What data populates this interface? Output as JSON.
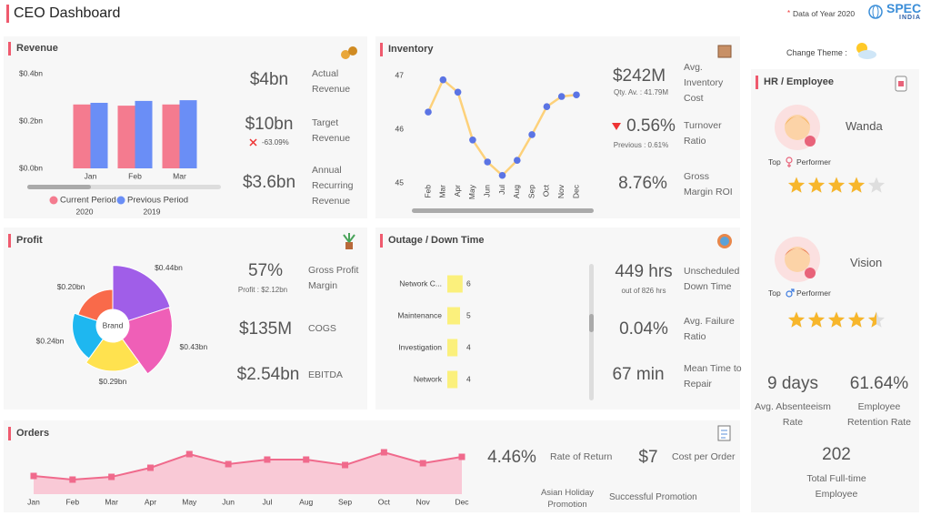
{
  "header": {
    "title": "CEO Dashboard",
    "note_mark": "*",
    "note": "Data of Year 2020",
    "logo": [
      "SPEC",
      "INDIA"
    ]
  },
  "theme_label": "Change Theme :",
  "revenue": {
    "title": "Revenue",
    "chart": {
      "type": "bar",
      "categories": [
        "Jan",
        "Feb",
        "Mar"
      ],
      "series": [
        {
          "name": "Current Period",
          "year": "2020",
          "color": "#f47b8f",
          "values": [
            0.27,
            0.265,
            0.27
          ]
        },
        {
          "name": "Previous Period",
          "year": "2019",
          "color": "#6a8ef6",
          "values": [
            0.277,
            0.285,
            0.288
          ]
        }
      ],
      "ylim": [
        0,
        0.4
      ],
      "yticks": [
        {
          "value": 0,
          "label": "$0.0bn"
        },
        {
          "value": 0.2,
          "label": "$0.2bn"
        },
        {
          "value": 0.4,
          "label": "$0.4bn"
        }
      ]
    },
    "kpis": [
      {
        "value": "$4bn",
        "label": "Actual Revenue"
      },
      {
        "value": "$10bn",
        "label": "Target Revenue",
        "change": "-63.09%"
      },
      {
        "value": "$3.6bn",
        "label": "Annual Recurring Revenue"
      }
    ]
  },
  "inventory": {
    "title": "Inventory",
    "chart": {
      "type": "line",
      "categories": [
        "Feb",
        "Mar",
        "Apr",
        "May",
        "Jun",
        "Jul",
        "Aug",
        "Sep",
        "Oct",
        "Nov",
        "Dec"
      ],
      "values": [
        46.32,
        46.92,
        46.69,
        45.8,
        45.39,
        45.14,
        45.42,
        45.9,
        46.42,
        46.61,
        46.64
      ],
      "color": "#fdd17a",
      "marker_color": "#5b74e4",
      "ylim": [
        45,
        47
      ],
      "yticks": [
        45,
        46,
        47
      ]
    },
    "kpis": [
      {
        "value": "$242M",
        "sub": "Qty. Av. : 41.79M",
        "label": "Avg. Inventory Cost"
      },
      {
        "value": "0.56%",
        "sub": "Previous : 0.61%",
        "label": "Turnover Ratio"
      },
      {
        "value": "8.76%",
        "label": "Gross Margin ROI"
      }
    ]
  },
  "profit": {
    "title": "Profit",
    "chart": {
      "type": "rose",
      "center_label": "Brand",
      "values": [
        0.44,
        0.43,
        0.29,
        0.24,
        0.2
      ],
      "value_labels": [
        "$0.44bn",
        "$0.43bn",
        "$0.29bn",
        "$0.24bn",
        "$0.20bn"
      ],
      "colors": [
        "#a05ee8",
        "#ef5fb7",
        "#ffe24f",
        "#1eb7f0",
        "#f96a4a"
      ]
    },
    "kpis": [
      {
        "value": "57%",
        "sub": "Profit : $2.12bn",
        "label": "Gross Profit Margin"
      },
      {
        "value": "$135M",
        "label": "COGS"
      },
      {
        "value": "$2.54bn",
        "label": "EBITDA"
      }
    ]
  },
  "outage": {
    "title": "Outage / Down Time",
    "chart": {
      "type": "bar",
      "orientation": "horizontal",
      "categories": [
        "Network C...",
        "Maintenance",
        "Investigation",
        "Network"
      ],
      "values": [
        6,
        5,
        4,
        4
      ],
      "color": "#fbf07c"
    },
    "kpis": [
      {
        "value": "449 hrs",
        "sub": "out of 826 hrs",
        "label": "Unscheduled Down Time"
      },
      {
        "value": "0.04%",
        "label": "Avg. Failure Ratio"
      },
      {
        "value": "67 min",
        "label": "Mean Time to Repair"
      }
    ]
  },
  "orders": {
    "title": "Orders",
    "chart": {
      "type": "area",
      "categories": [
        "Jan",
        "Feb",
        "Mar",
        "Apr",
        "May",
        "Jun",
        "Jul",
        "Aug",
        "Sep",
        "Oct",
        "Nov",
        "Dec"
      ],
      "values": [
        20,
        16,
        19,
        29,
        44,
        33,
        38,
        38,
        32,
        46,
        34,
        41
      ],
      "color": "#f06a8c",
      "fill": "#f9c9d6"
    },
    "kpis": [
      {
        "value": "4.46%",
        "label": "Rate of Return"
      },
      {
        "value": "$7",
        "label": "Cost per Order"
      }
    ],
    "promotions": [
      "Asian Holiday Promotion",
      "Successful Promotion"
    ]
  },
  "hr": {
    "title": "HR / Employee",
    "rating_max": 5,
    "employees": [
      {
        "name": "Wanda",
        "tag": "Top",
        "role": "Performer",
        "gender": "female",
        "rating": 4
      },
      {
        "name": "Vision",
        "tag": "Top",
        "role": "Performer",
        "gender": "male",
        "rating": 4.5
      }
    ],
    "stats": [
      {
        "value": "9 days",
        "label": "Avg. Absenteeism Rate"
      },
      {
        "value": "61.64%",
        "label": "Employee Retention Rate"
      },
      {
        "value": "202",
        "label": "Total Full-time Employee"
      }
    ]
  }
}
